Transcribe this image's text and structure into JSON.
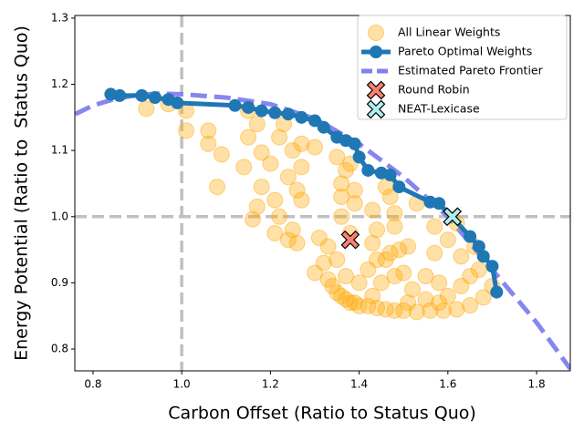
{
  "chart_data": {
    "type": "scatter",
    "x_label": "Carbon Offset (Ratio to Status Quo)",
    "y_label": "Energy Potential (Ratio to  Status Quo)",
    "xlim": [
      0.759,
      1.876
    ],
    "ylim": [
      0.767,
      1.304
    ],
    "xticks": [
      0.8,
      {
        "value": 1.0,
        "label": "1.0"
      },
      1.2,
      1.4,
      1.6,
      1.8
    ],
    "yticks": [
      0.8,
      0.9,
      {
        "value": 1.0,
        "label": "1.0"
      },
      1.1,
      1.2,
      1.3
    ],
    "reference_lines": {
      "x": 1.0,
      "y": 1.0,
      "color": "#c0c0c0"
    },
    "legend": "upper right",
    "series": [
      {
        "name": "All Linear Weights",
        "type": "scatter",
        "color": "#ffa500",
        "x": [
          0.92,
          0.97,
          1.01,
          1.01,
          1.06,
          1.06,
          1.09,
          1.08,
          1.14,
          1.15,
          1.15,
          1.17,
          1.18,
          1.18,
          1.17,
          1.16,
          1.2,
          1.21,
          1.22,
          1.21,
          1.22,
          1.23,
          1.24,
          1.25,
          1.25,
          1.24,
          1.26,
          1.26,
          1.27,
          1.27,
          1.27,
          1.3,
          1.31,
          1.33,
          1.35,
          1.36,
          1.36,
          1.36,
          1.37,
          1.38,
          1.39,
          1.39,
          1.38,
          1.43,
          1.43,
          1.44,
          1.46,
          1.47,
          1.48,
          1.48,
          1.46,
          1.49,
          1.51,
          1.53,
          1.57,
          1.57,
          1.6,
          1.62,
          1.63,
          1.66,
          1.3,
          1.32,
          1.33,
          1.34,
          1.35,
          1.36,
          1.37,
          1.38,
          1.39,
          1.4,
          1.42,
          1.44,
          1.46,
          1.48,
          1.5,
          1.53,
          1.56,
          1.59,
          1.62,
          1.65,
          1.68,
          1.7,
          1.37,
          1.4,
          1.42,
          1.45,
          1.48,
          1.5,
          1.52,
          1.55,
          1.58,
          1.6,
          1.63,
          1.65,
          1.55,
          1.35,
          1.44,
          1.47,
          1.51,
          1.43,
          1.58,
          1.67
        ],
        "values": [
          1.163,
          1.17,
          1.16,
          1.13,
          1.13,
          1.11,
          1.094,
          1.045,
          1.075,
          1.12,
          1.16,
          1.14,
          1.097,
          1.045,
          1.015,
          0.996,
          1.08,
          1.025,
          1.0,
          0.975,
          1.12,
          1.14,
          1.06,
          1.1,
          0.98,
          0.965,
          0.96,
          1.04,
          1.075,
          1.025,
          1.11,
          1.105,
          0.968,
          0.955,
          1.09,
          1.05,
          1.03,
          1.0,
          1.07,
          1.08,
          1.04,
          1.02,
          0.975,
          0.96,
          1.01,
          0.98,
          1.045,
          1.03,
          0.985,
          1.005,
          0.935,
          0.95,
          0.955,
          1.02,
          0.985,
          0.945,
          0.965,
          0.99,
          0.94,
          0.955,
          0.915,
          0.93,
          0.905,
          0.895,
          0.885,
          0.88,
          0.875,
          0.87,
          0.87,
          0.865,
          0.865,
          0.862,
          0.86,
          0.858,
          0.858,
          0.856,
          0.858,
          0.858,
          0.86,
          0.866,
          0.878,
          0.895,
          0.91,
          0.9,
          0.92,
          0.9,
          0.91,
          0.915,
          0.89,
          0.875,
          0.9,
          0.88,
          0.895,
          0.91,
          0.91,
          0.935,
          0.935,
          0.945,
          0.87,
          0.88,
          0.87,
          0.92
        ]
      },
      {
        "name": "Pareto Optimal Weights",
        "type": "line",
        "color": "#1f77b4",
        "x": [
          0.84,
          0.86,
          0.91,
          0.94,
          0.97,
          0.99,
          1.12,
          1.15,
          1.18,
          1.21,
          1.24,
          1.27,
          1.3,
          1.32,
          1.35,
          1.37,
          1.39,
          1.4,
          1.42,
          1.45,
          1.47,
          1.49,
          1.56,
          1.58,
          1.65,
          1.67,
          1.68,
          1.7,
          1.71
        ],
        "values": [
          1.185,
          1.183,
          1.183,
          1.18,
          1.177,
          1.172,
          1.168,
          1.165,
          1.16,
          1.157,
          1.155,
          1.15,
          1.145,
          1.135,
          1.12,
          1.115,
          1.11,
          1.09,
          1.07,
          1.066,
          1.063,
          1.045,
          1.022,
          1.02,
          0.97,
          0.955,
          0.94,
          0.925,
          0.886
        ]
      },
      {
        "name": "Estimated Pareto Frontier",
        "type": "dashed",
        "color": "#8080f0",
        "x": [
          0.76,
          0.8,
          0.85,
          0.9,
          0.95,
          1.0,
          1.1,
          1.2,
          1.3,
          1.4,
          1.5,
          1.6,
          1.7,
          1.8,
          1.876
        ],
        "values": [
          1.155,
          1.168,
          1.178,
          1.184,
          1.186,
          1.185,
          1.18,
          1.17,
          1.148,
          1.11,
          1.06,
          1.0,
          0.92,
          0.84,
          0.77
        ]
      },
      {
        "name": "Round Robin",
        "type": "cross",
        "color": "#fa8072",
        "x": [
          1.38
        ],
        "values": [
          0.965
        ]
      },
      {
        "name": "NEAT-Lexicase",
        "type": "cross",
        "color": "#aeeeee",
        "x": [
          1.61
        ],
        "values": [
          1.0
        ]
      }
    ]
  }
}
